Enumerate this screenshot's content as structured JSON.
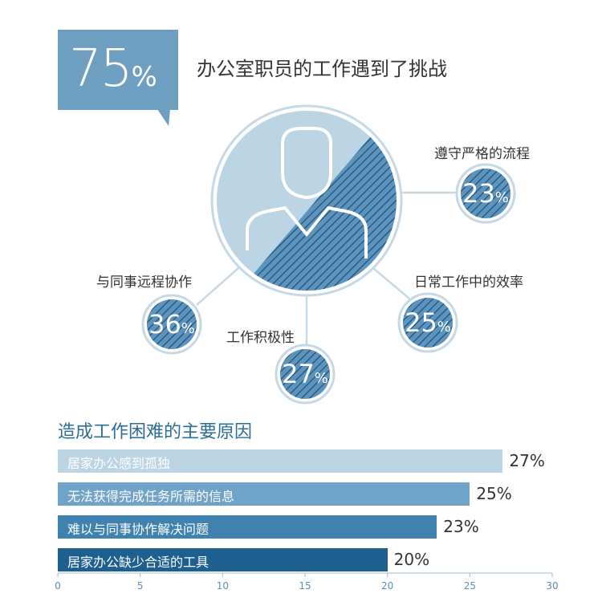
{
  "headline": {
    "value": "75",
    "unit": "%",
    "text": "办公室职员的工作遇到了挑战"
  },
  "challenges": [
    {
      "label": "遵守严格的流程",
      "value": "23",
      "unit": "%"
    },
    {
      "label": "日常工作中的效率",
      "value": "25",
      "unit": "%"
    },
    {
      "label": "工作积极性",
      "value": "27",
      "unit": "%"
    },
    {
      "label": "与同事远程协作",
      "value": "36",
      "unit": "%"
    }
  ],
  "colors": {
    "dark": "#2a6a97",
    "mid": "#4f8db8",
    "light": "#bcd5e5",
    "badge": "#6f9fc0"
  },
  "icon": "person-icon",
  "chart_data": {
    "type": "bar",
    "orientation": "horizontal",
    "title": "造成工作困难的主要原因",
    "categories": [
      "居家办公感到孤独",
      "无法获得完成任务所需的信息",
      "难以与同事协作解决问题",
      "居家办公缺少合适的工具"
    ],
    "values": [
      27,
      25,
      23,
      20
    ],
    "value_labels": [
      "27%",
      "25%",
      "23%",
      "20%"
    ],
    "bar_colors": [
      "#bcd5e5",
      "#6fa3c8",
      "#3f82b0",
      "#1d5f8e"
    ],
    "xlim": [
      0,
      30
    ],
    "xticks": [
      "0",
      "5",
      "10",
      "15",
      "20",
      "25",
      "30"
    ],
    "grid": false
  }
}
